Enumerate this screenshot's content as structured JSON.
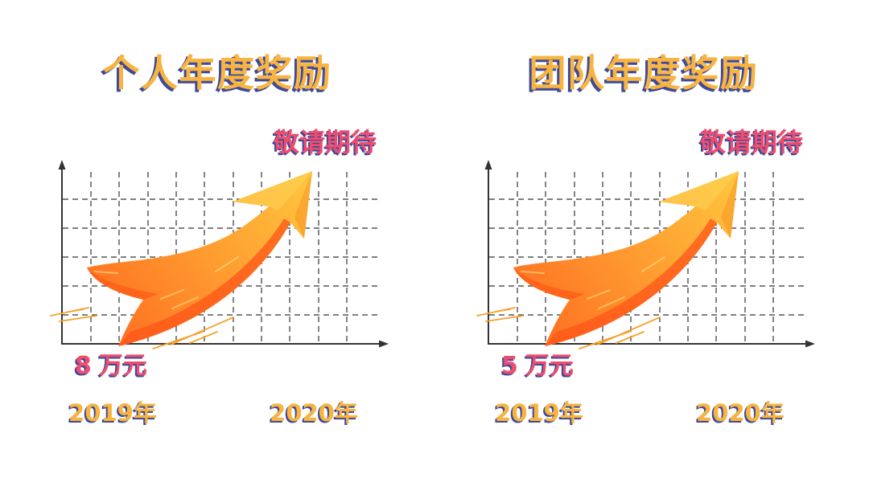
{
  "colors": {
    "title": "#F8B43F",
    "highlight": "#EE4D6D",
    "text_shadow": "#3E4A9A",
    "axis": "#333333",
    "arrow_dark": "#FF6A1F",
    "arrow_mid": "#FF9A30",
    "arrow_light": "#FFC73E",
    "speed_line": "#F7A12A"
  },
  "chart_data": [
    {
      "type": "line",
      "title": "个人年度奖励",
      "categories": [
        "2019年",
        "2020年"
      ],
      "values": [
        8,
        null
      ],
      "unit": "万元",
      "annotation": "敬请期待",
      "grid": true
    },
    {
      "type": "line",
      "title": "团队年度奖励",
      "categories": [
        "2019年",
        "2020年"
      ],
      "values": [
        5,
        null
      ],
      "unit": "万元",
      "annotation": "敬请期待",
      "grid": true
    }
  ]
}
